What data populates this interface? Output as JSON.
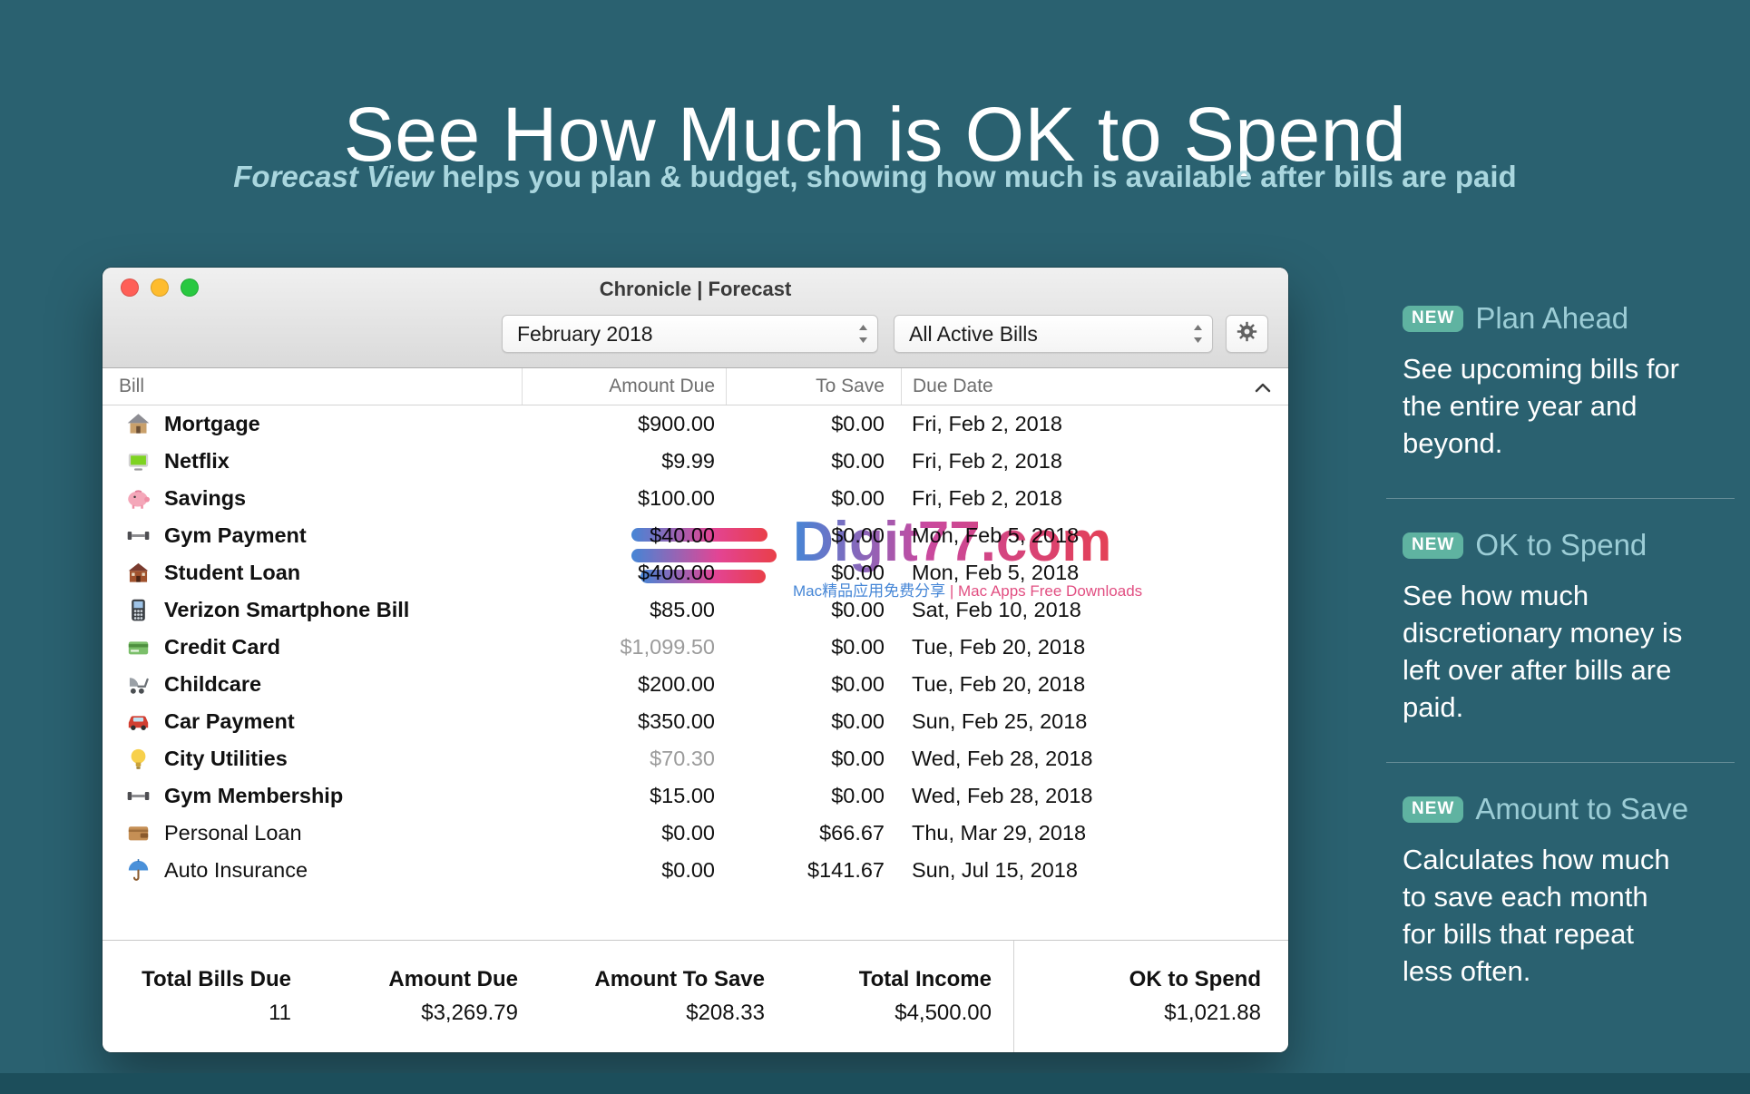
{
  "hero": {
    "title": "See How Much is OK to Spend",
    "subtitle_emphasis": "Forecast View",
    "subtitle_rest": " helps you plan & budget, showing how much is available after bills are paid"
  },
  "window": {
    "title": "Chronicle | Forecast",
    "toolbar": {
      "period_dropdown": "February 2018",
      "filter_dropdown": "All Active Bills",
      "settings_icon": "gear"
    },
    "table": {
      "columns": {
        "bill": "Bill",
        "amount_due": "Amount Due",
        "to_save": "To Save",
        "due_date": "Due Date"
      },
      "sort_icon": "chevron-up",
      "rows": [
        {
          "icon": "house",
          "name": "Mortgage",
          "amount_due": "$900.00",
          "to_save": "$0.00",
          "due_date": "Fri, Feb 2, 2018",
          "muted": false,
          "bold": true
        },
        {
          "icon": "tv",
          "name": "Netflix",
          "amount_due": "$9.99",
          "to_save": "$0.00",
          "due_date": "Fri, Feb 2, 2018",
          "muted": false,
          "bold": true
        },
        {
          "icon": "piggy-bank",
          "name": "Savings",
          "amount_due": "$100.00",
          "to_save": "$0.00",
          "due_date": "Fri, Feb 2, 2018",
          "muted": false,
          "bold": true
        },
        {
          "icon": "dumbbell",
          "name": "Gym Payment",
          "amount_due": "$40.00",
          "to_save": "$0.00",
          "due_date": "Mon, Feb 5, 2018",
          "muted": false,
          "bold": true
        },
        {
          "icon": "school",
          "name": "Student Loan",
          "amount_due": "$400.00",
          "to_save": "$0.00",
          "due_date": "Mon, Feb 5, 2018",
          "muted": false,
          "bold": true
        },
        {
          "icon": "smartphone",
          "name": "Verizon Smartphone Bill",
          "amount_due": "$85.00",
          "to_save": "$0.00",
          "due_date": "Sat, Feb 10, 2018",
          "muted": false,
          "bold": true
        },
        {
          "icon": "credit-card",
          "name": "Credit Card",
          "amount_due": "$1,099.50",
          "to_save": "$0.00",
          "due_date": "Tue, Feb 20, 2018",
          "muted": true,
          "bold": true
        },
        {
          "icon": "stroller",
          "name": "Childcare",
          "amount_due": "$200.00",
          "to_save": "$0.00",
          "due_date": "Tue, Feb 20, 2018",
          "muted": false,
          "bold": true
        },
        {
          "icon": "car",
          "name": "Car Payment",
          "amount_due": "$350.00",
          "to_save": "$0.00",
          "due_date": "Sun, Feb 25, 2018",
          "muted": false,
          "bold": true
        },
        {
          "icon": "lightbulb",
          "name": "City Utilities",
          "amount_due": "$70.30",
          "to_save": "$0.00",
          "due_date": "Wed, Feb 28, 2018",
          "muted": true,
          "bold": true
        },
        {
          "icon": "dumbbell",
          "name": "Gym Membership",
          "amount_due": "$15.00",
          "to_save": "$0.00",
          "due_date": "Wed, Feb 28, 2018",
          "muted": false,
          "bold": true
        },
        {
          "icon": "wallet",
          "name": "Personal Loan",
          "amount_due": "$0.00",
          "to_save": "$66.67",
          "due_date": "Thu, Mar 29, 2018",
          "muted": false,
          "bold": false
        },
        {
          "icon": "umbrella",
          "name": "Auto Insurance",
          "amount_due": "$0.00",
          "to_save": "$141.67",
          "due_date": "Sun, Jul 15, 2018",
          "muted": false,
          "bold": false
        }
      ]
    },
    "summary": {
      "stats": [
        {
          "label": "Total Bills Due",
          "value": "11"
        },
        {
          "label": "Amount Due",
          "value": "$3,269.79"
        },
        {
          "label": "Amount To Save",
          "value": "$208.33"
        },
        {
          "label": "Total Income",
          "value": "$4,500.00"
        },
        {
          "label": "OK to Spend",
          "value": "$1,021.88"
        }
      ]
    }
  },
  "watermark": {
    "brand": "Digit77.com",
    "tagline_cn": "Mac精品应用免费分享",
    "tagline_en": "| Mac Apps Free Downloads"
  },
  "features": [
    {
      "badge": "NEW",
      "title": "Plan Ahead",
      "body": "See upcoming bills for the entire year and beyond."
    },
    {
      "badge": "NEW",
      "title": "OK to Spend",
      "body": "See how much discretionary money is left over after bills are paid."
    },
    {
      "badge": "NEW",
      "title": "Amount to Save",
      "body": "Calculates how much to save each month for bills that repeat less often."
    }
  ],
  "colors": {
    "background": "#2a6170",
    "badge": "#5fb3a1",
    "feature_title": "#9ccdd6",
    "subtitle": "#a9d6de",
    "muted_amount": "#9b9b9b",
    "traffic_red": "#ff5f57",
    "traffic_yellow": "#febc2e",
    "traffic_green": "#28c840",
    "watermark_pink": "#e23a8e",
    "watermark_blue": "#3b7fd4"
  }
}
